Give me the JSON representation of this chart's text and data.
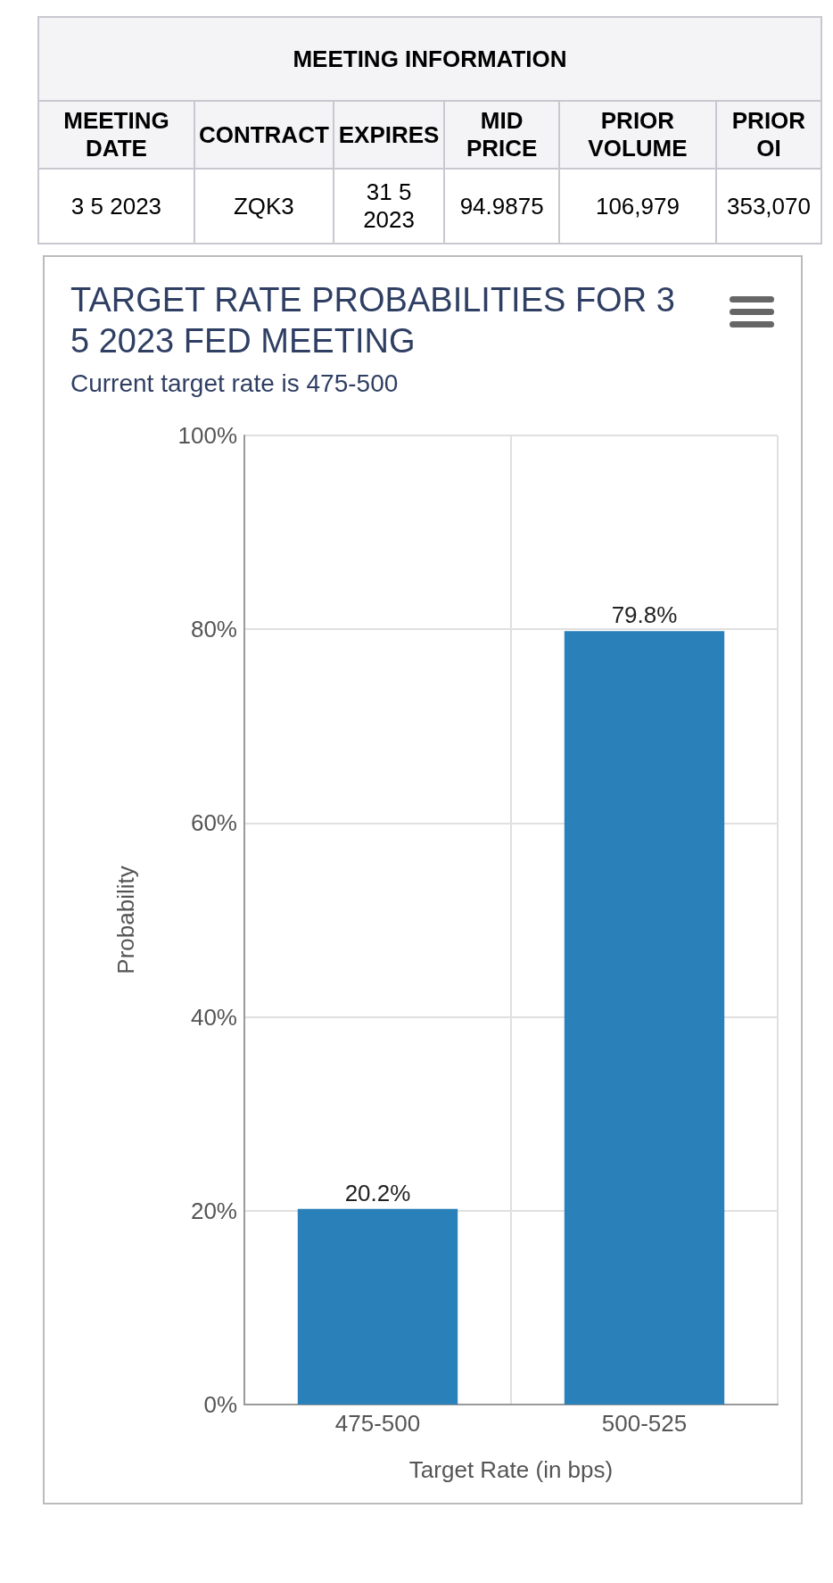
{
  "chart_data": [
    {
      "type": "other",
      "title": "MEETING INFORMATION",
      "categories": [
        "MEETING DATE",
        "CONTRACT",
        "EXPIRES",
        "MID PRICE",
        "PRIOR VOLUME",
        "PRIOR OI"
      ],
      "annotations": [
        "3 5 2023",
        "ZQK3",
        "31 5 2023",
        "94.9875",
        "106,979",
        "353,070"
      ]
    },
    {
      "type": "bar",
      "title": "TARGET RATE PROBABILITIES FOR 3 5 2023 FED MEETING",
      "subtitle": "Current target rate is 475-500",
      "xlabel": "Target Rate (in bps)",
      "ylabel": "Probability",
      "categories": [
        "475-500",
        "500-525"
      ],
      "values": [
        20.2,
        79.8
      ],
      "value_labels": [
        "20.2%",
        "79.8%"
      ],
      "color": "#2a80b9",
      "ylim": [
        0,
        100
      ],
      "yticks": [
        {
          "value": 0,
          "label": "0%"
        },
        {
          "value": 20,
          "label": "20%"
        },
        {
          "value": 40,
          "label": "40%"
        },
        {
          "value": 60,
          "label": "60%"
        },
        {
          "value": 80,
          "label": "80%"
        },
        {
          "value": 100,
          "label": "100%"
        }
      ],
      "grid": true
    }
  ]
}
